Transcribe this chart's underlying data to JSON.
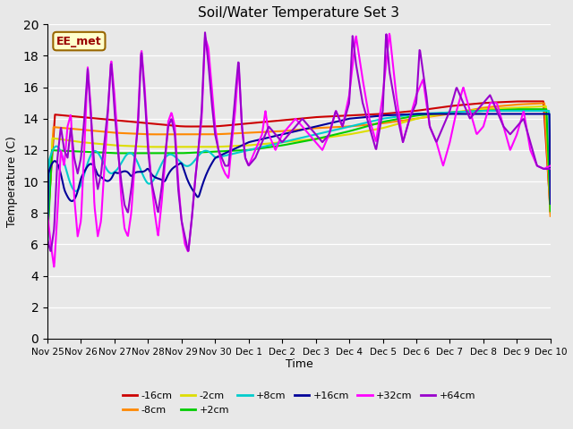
{
  "title": "Soil/Water Temperature Set 3",
  "xlabel": "Time",
  "ylabel": "Temperature (C)",
  "ylim": [
    0,
    20
  ],
  "yticks": [
    0,
    2,
    4,
    6,
    8,
    10,
    12,
    14,
    16,
    18,
    20
  ],
  "background_color": "#e8e8e8",
  "plot_bg_color": "#e8e8e8",
  "annotation_text": "EE_met",
  "annotation_bg": "#ffffcc",
  "annotation_border": "#996600",
  "series": [
    {
      "label": "-16cm",
      "color": "#cc0000",
      "lw": 1.5
    },
    {
      "label": "-8cm",
      "color": "#ff8800",
      "lw": 1.5
    },
    {
      "label": "-2cm",
      "color": "#dddd00",
      "lw": 1.5
    },
    {
      "label": "+2cm",
      "color": "#00cc00",
      "lw": 1.5
    },
    {
      "label": "+8cm",
      "color": "#00cccc",
      "lw": 1.5
    },
    {
      "label": "+16cm",
      "color": "#000099",
      "lw": 1.5
    },
    {
      "label": "+32cm",
      "color": "#ff00ff",
      "lw": 1.5
    },
    {
      "label": "+64cm",
      "color": "#9900cc",
      "lw": 1.5
    }
  ],
  "x_start": 0,
  "x_end": 15,
  "xtick_labels": [
    "Nov 25",
    "Nov 26",
    "Nov 27",
    "Nov 28",
    "Nov 29",
    "Nov 30",
    "Dec 1",
    "Dec 2",
    "Dec 3",
    "Dec 4",
    "Dec 5",
    "Dec 6",
    "Dec 7",
    "Dec 8",
    "Dec 9",
    "Dec 10"
  ],
  "xtick_positions": [
    0,
    1,
    2,
    3,
    4,
    5,
    6,
    7,
    8,
    9,
    10,
    11,
    12,
    13,
    14,
    15
  ]
}
